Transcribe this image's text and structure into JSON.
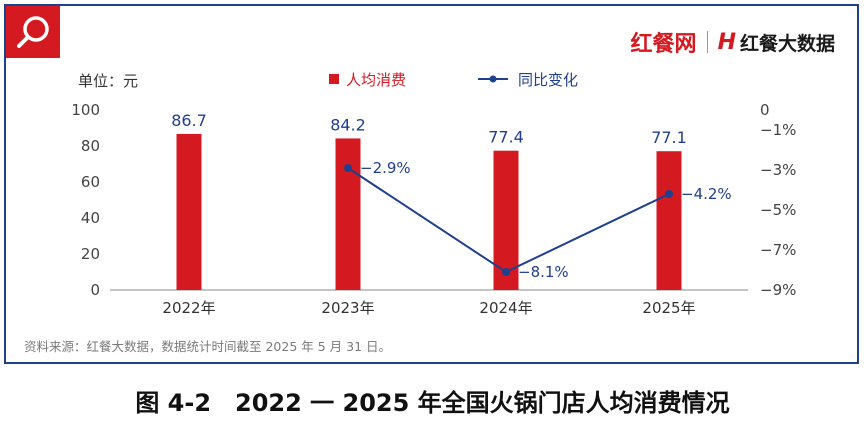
{
  "brand": {
    "primary": "红餐网",
    "secondary": "红餐大数据",
    "mark": "H"
  },
  "source_note": "资料来源：红餐大数据，数据统计时间截至 2025 年 5 月 31 日。",
  "figure_caption": "图 4-2　2022 一 2025 年全国火锅门店人均消费情况",
  "colors": {
    "bar": "#d41920",
    "line": "#1f3f8f",
    "axis_text": "#444444"
  },
  "chart_data": {
    "type": "bar",
    "unit_label": "单位：元",
    "categories": [
      "2022年",
      "2023年",
      "2024年",
      "2025年"
    ],
    "series": [
      {
        "name": "人均消费",
        "type": "bar",
        "axis": "left",
        "values": [
          86.7,
          84.2,
          77.4,
          77.1
        ],
        "labels": [
          "86.7",
          "84.2",
          "77.4",
          "77.1"
        ]
      },
      {
        "name": "同比变化",
        "type": "line",
        "axis": "right",
        "values": [
          null,
          -2.9,
          -8.1,
          -4.2
        ],
        "labels": [
          "",
          "−2.9%",
          "−8.1%",
          "−4.2%"
        ]
      }
    ],
    "y_left": {
      "min": 0,
      "max": 100,
      "ticks": [
        0,
        20,
        40,
        60,
        80,
        100
      ],
      "tick_labels": [
        "0",
        "20",
        "40",
        "60",
        "80",
        "100"
      ]
    },
    "y_right": {
      "min": -9,
      "max": 0,
      "ticks": [
        0,
        -1,
        -3,
        -5,
        -7,
        -9
      ],
      "tick_labels": [
        "0",
        "−1%",
        "−3%",
        "−5%",
        "−7%",
        "−9%"
      ]
    },
    "legend_position": "top-center",
    "grid": false
  }
}
